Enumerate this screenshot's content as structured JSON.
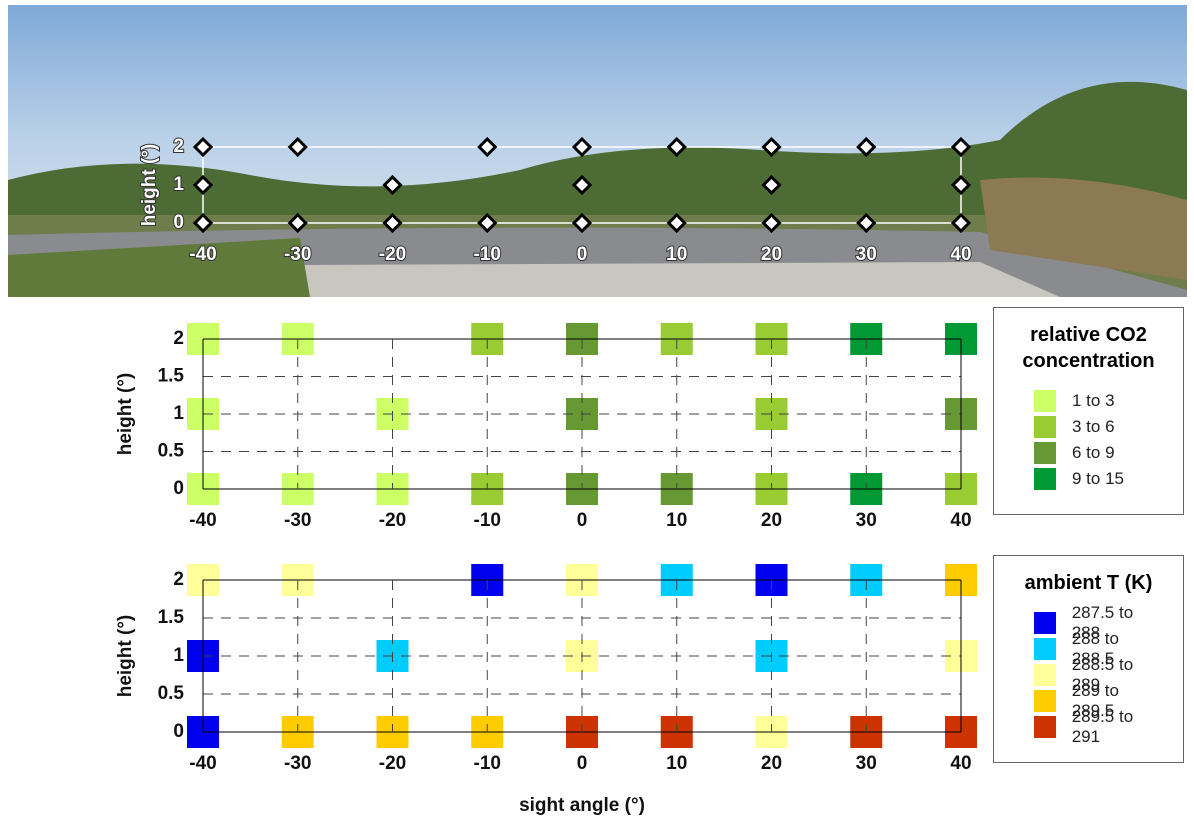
{
  "chart_data": [
    {
      "type": "scatter",
      "marker": "diamond",
      "grid": false,
      "ylabel": "height (°)",
      "xlim": [
        -40,
        40
      ],
      "ylim": [
        0,
        2
      ],
      "xticks": [
        -40,
        -30,
        -20,
        -10,
        0,
        10,
        20,
        30,
        40
      ],
      "yticks": [
        0,
        1,
        2
      ],
      "series": [
        {
          "color": "#ffffff",
          "x": [
            -40,
            -30,
            -10,
            0,
            10,
            20,
            30,
            40,
            -40,
            -20,
            0,
            20,
            40,
            -40,
            -30,
            -20,
            -10,
            0,
            10,
            20,
            30,
            40
          ],
          "values": [
            2,
            2,
            2,
            2,
            2,
            2,
            2,
            2,
            1,
            1,
            1,
            1,
            1,
            0,
            0,
            0,
            0,
            0,
            0,
            0,
            0,
            0
          ]
        }
      ]
    },
    {
      "type": "scatter",
      "marker": "square",
      "grid": true,
      "ylabel": "height (°)",
      "legend_title": "relative CO2 concentration",
      "xlim": [
        -40,
        40
      ],
      "ylim": [
        0,
        2
      ],
      "xticks": [
        -40,
        -30,
        -20,
        -10,
        0,
        10,
        20,
        30,
        40
      ],
      "yticks": [
        0,
        0.5,
        1,
        1.5,
        2
      ],
      "series": [
        {
          "name": "1 to 3",
          "color": "#ccff66",
          "x": [
            -40,
            -30,
            -40,
            -20,
            -40,
            -30,
            -20
          ],
          "values": [
            2,
            2,
            1,
            1,
            0,
            0,
            0
          ]
        },
        {
          "name": "3 to 6",
          "color": "#99cc33",
          "x": [
            -10,
            10,
            20,
            20,
            -10,
            20,
            40
          ],
          "values": [
            2,
            2,
            2,
            1,
            0,
            0,
            0
          ]
        },
        {
          "name": "6 to 9",
          "color": "#669933",
          "x": [
            0,
            0,
            40,
            0,
            10
          ],
          "values": [
            2,
            1,
            1,
            0,
            0
          ]
        },
        {
          "name": "9 to 15",
          "color": "#009933",
          "x": [
            30,
            40,
            30
          ],
          "values": [
            2,
            2,
            0
          ]
        }
      ]
    },
    {
      "type": "scatter",
      "marker": "square",
      "grid": true,
      "ylabel": "height (°)",
      "xlabel": "sight angle (°)",
      "legend_title": "ambient T (K)",
      "xlim": [
        -40,
        40
      ],
      "ylim": [
        0,
        2
      ],
      "xticks": [
        -40,
        -30,
        -20,
        -10,
        0,
        10,
        20,
        30,
        40
      ],
      "yticks": [
        0,
        0.5,
        1,
        1.5,
        2
      ],
      "series": [
        {
          "name": "287.5 to 288",
          "color": "#0000ee",
          "x": [
            -10,
            20,
            -40,
            -40
          ],
          "values": [
            2,
            2,
            1,
            0
          ]
        },
        {
          "name": "288 to 288.5",
          "color": "#00ccff",
          "x": [
            10,
            30,
            -20,
            20
          ],
          "values": [
            2,
            2,
            1,
            1
          ]
        },
        {
          "name": "288.5 to 289",
          "color": "#ffff99",
          "x": [
            -40,
            -30,
            0,
            0,
            40,
            20
          ],
          "values": [
            2,
            2,
            2,
            1,
            1,
            0
          ]
        },
        {
          "name": "289 to 289.5",
          "color": "#ffcc00",
          "x": [
            40,
            -30,
            -20,
            -10
          ],
          "values": [
            2,
            0,
            0,
            0
          ]
        },
        {
          "name": "289.5 to 291",
          "color": "#cc3300",
          "x": [
            0,
            10,
            30,
            40
          ],
          "values": [
            0,
            0,
            0,
            0
          ]
        }
      ]
    }
  ]
}
